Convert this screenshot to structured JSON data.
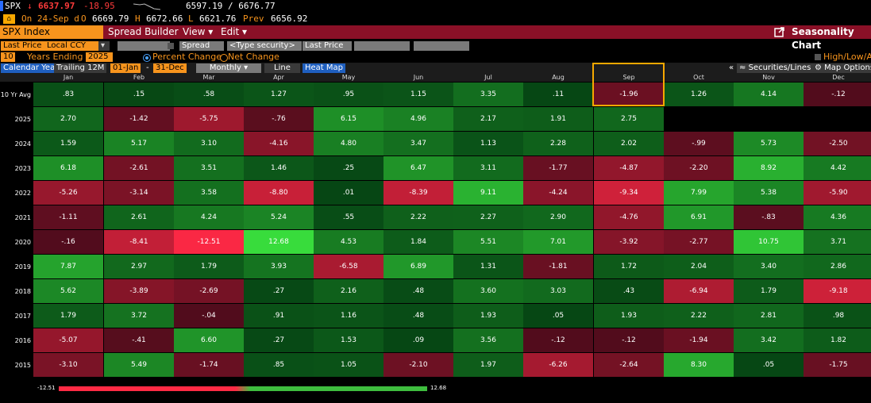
{
  "quote": {
    "ticker": "SPX",
    "arrow": "↓",
    "last": "6637.97",
    "change": "-18.95",
    "range": "6597.19 / 6676.77",
    "date_line": "On 24-Sep d",
    "open_label": "O",
    "open": "6669.79",
    "high_label": "H",
    "high": "6672.66",
    "low_label": "L",
    "low": "6621.76",
    "prev_label": "Prev",
    "prev": "6656.92"
  },
  "titlebar": {
    "security": "SPX Index",
    "spread_builder": "Spread Builder",
    "view": "View ▾",
    "edit": "Edit ▾",
    "app_title": "Seasonality Chart"
  },
  "controls": {
    "field": "Last Price",
    "currency": "Local CCY",
    "spread": "Spread",
    "security_placeholder": "<Type security>",
    "field2": "Last Price",
    "years": "10",
    "years_label": "Years Ending",
    "end_year": "2025",
    "percent_change": "Percent Change",
    "net_change": "Net Change",
    "hla": "High/Low/A",
    "calendar_year": "Calendar Year",
    "trailing": "Trailing 12M",
    "start_date": "01-Jan",
    "dash": "-",
    "end_date": "31-Dec",
    "period": "Monthly",
    "line": "Line",
    "heatmap": "Heat Map",
    "securities_lines": "Securities/Lines",
    "map_options": "Map Options"
  },
  "months": [
    "Jan",
    "Feb",
    "Mar",
    "Apr",
    "May",
    "Jun",
    "Jul",
    "Aug",
    "Sep",
    "Oct",
    "Nov",
    "Dec"
  ],
  "rows": [
    {
      "label": "10 Yr Avg",
      "values": [
        ".83",
        ".15",
        ".58",
        "1.27",
        ".95",
        "1.15",
        "3.35",
        ".11",
        "-1.96",
        "1.26",
        "4.14",
        "-.12"
      ]
    },
    {
      "label": "2025",
      "values": [
        "2.70",
        "-1.42",
        "-5.75",
        "-.76",
        "6.15",
        "4.96",
        "2.17",
        "1.91",
        "2.75",
        "",
        "",
        ""
      ]
    },
    {
      "label": "2024",
      "values": [
        "1.59",
        "5.17",
        "3.10",
        "-4.16",
        "4.80",
        "3.47",
        "1.13",
        "2.28",
        "2.02",
        "-.99",
        "5.73",
        "-2.50"
      ]
    },
    {
      "label": "2023",
      "values": [
        "6.18",
        "-2.61",
        "3.51",
        "1.46",
        ".25",
        "6.47",
        "3.11",
        "-1.77",
        "-4.87",
        "-2.20",
        "8.92",
        "4.42"
      ]
    },
    {
      "label": "2022",
      "values": [
        "-5.26",
        "-3.14",
        "3.58",
        "-8.80",
        ".01",
        "-8.39",
        "9.11",
        "-4.24",
        "-9.34",
        "7.99",
        "5.38",
        "-5.90"
      ]
    },
    {
      "label": "2021",
      "values": [
        "-1.11",
        "2.61",
        "4.24",
        "5.24",
        ".55",
        "2.22",
        "2.27",
        "2.90",
        "-4.76",
        "6.91",
        "-.83",
        "4.36"
      ]
    },
    {
      "label": "2020",
      "values": [
        "-.16",
        "-8.41",
        "-12.51",
        "12.68",
        "4.53",
        "1.84",
        "5.51",
        "7.01",
        "-3.92",
        "-2.77",
        "10.75",
        "3.71"
      ]
    },
    {
      "label": "2019",
      "values": [
        "7.87",
        "2.97",
        "1.79",
        "3.93",
        "-6.58",
        "6.89",
        "1.31",
        "-1.81",
        "1.72",
        "2.04",
        "3.40",
        "2.86"
      ]
    },
    {
      "label": "2018",
      "values": [
        "5.62",
        "-3.89",
        "-2.69",
        ".27",
        "2.16",
        ".48",
        "3.60",
        "3.03",
        ".43",
        "-6.94",
        "1.79",
        "-9.18"
      ]
    },
    {
      "label": "2017",
      "values": [
        "1.79",
        "3.72",
        "-.04",
        ".91",
        "1.16",
        ".48",
        "1.93",
        ".05",
        "1.93",
        "2.22",
        "2.81",
        ".98"
      ]
    },
    {
      "label": "2016",
      "values": [
        "-5.07",
        "-.41",
        "6.60",
        ".27",
        "1.53",
        ".09",
        "3.56",
        "-.12",
        "-.12",
        "-1.94",
        "3.42",
        "1.82"
      ]
    },
    {
      "label": "2015",
      "values": [
        "-3.10",
        "5.49",
        "-1.74",
        ".85",
        "1.05",
        "-2.10",
        "1.97",
        "-6.26",
        "-2.64",
        "8.30",
        ".05",
        "-1.75"
      ]
    }
  ],
  "legend": {
    "min": "-12.51",
    "max": "12.68"
  },
  "colors": {
    "orange": "#f7941d",
    "highlight": "#f7a800",
    "titlebar": "#8a1027",
    "down": "#ff3b3b"
  }
}
